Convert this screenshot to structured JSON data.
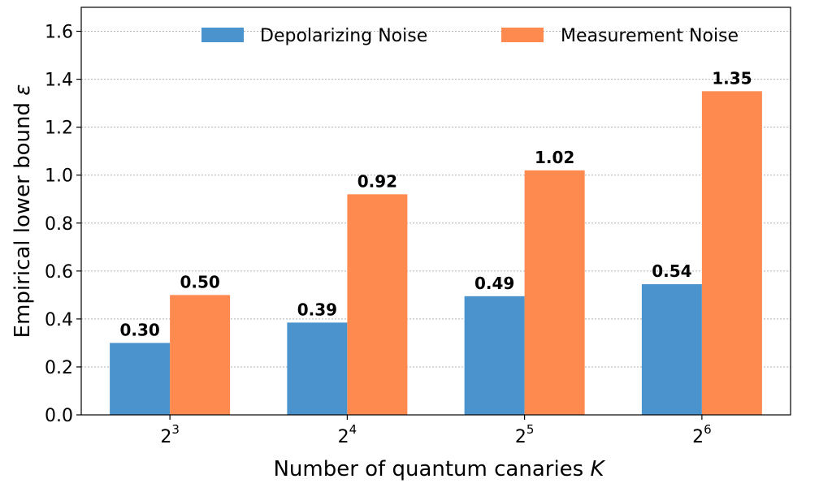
{
  "chart_data": {
    "type": "bar",
    "categories": [
      {
        "base": "2",
        "exp": "3"
      },
      {
        "base": "2",
        "exp": "4"
      },
      {
        "base": "2",
        "exp": "5"
      },
      {
        "base": "2",
        "exp": "6"
      }
    ],
    "series": [
      {
        "name": "Depolarizing Noise",
        "values": [
          0.3,
          0.385,
          0.495,
          0.545
        ],
        "labels": [
          "0.30",
          "0.39",
          "0.49",
          "0.54"
        ],
        "color": "#4a93cc"
      },
      {
        "name": "Measurement Noise",
        "values": [
          0.5,
          0.92,
          1.02,
          1.35
        ],
        "labels": [
          "0.50",
          "0.92",
          "1.02",
          "1.35"
        ],
        "color": "#ff8a50"
      }
    ],
    "xlabel": {
      "text": "Number of quantum canaries ",
      "var": "K"
    },
    "ylabel": {
      "text": "Empirical lower bound ",
      "var": "ε"
    },
    "ylim": [
      0,
      1.7
    ],
    "yticks": [
      "0.0",
      "0.2",
      "0.4",
      "0.6",
      "0.8",
      "1.0",
      "1.2",
      "1.4",
      "1.6"
    ],
    "grid": "y-dotted",
    "legend_position": "top-right"
  }
}
